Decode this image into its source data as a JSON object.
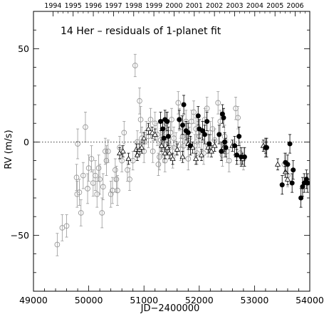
{
  "chart_data": {
    "type": "scatter",
    "title": "14 Her – residuals of 1-planet fit",
    "xlabel": "JD−2400000",
    "ylabel": "RV (m/s)",
    "xlim": [
      49000,
      54000
    ],
    "ylim": [
      -80,
      70
    ],
    "x_ticks": [
      49000,
      50000,
      51000,
      52000,
      53000,
      54000
    ],
    "x_tick_labels": [
      "49000",
      "50000",
      "51000",
      "52000",
      "53000",
      "54000"
    ],
    "y_ticks": [
      -50,
      0,
      50
    ],
    "y_tick_labels": [
      "−50",
      "0",
      "50"
    ],
    "top_axis_years": [
      "1994",
      "1995",
      "1996",
      "1997",
      "1998",
      "1999",
      "2000",
      "2001",
      "2002",
      "2003",
      "2004",
      "2005",
      "2006"
    ],
    "top_axis_year_jd": [
      49353,
      49718,
      50083,
      50449,
      50814,
      51179,
      51544,
      51910,
      52275,
      52640,
      53005,
      53371,
      53736
    ],
    "zero_line": true,
    "grid": false,
    "legend": "none",
    "series": [
      {
        "marker": "open-circle",
        "color": "#999999",
        "points": [
          [
            49430,
            -55,
            6
          ],
          [
            49520,
            -46,
            7
          ],
          [
            49600,
            -45,
            6
          ],
          [
            49780,
            -19,
            7
          ],
          [
            49790,
            -28,
            7
          ],
          [
            49800,
            -1,
            8
          ],
          [
            49830,
            -27,
            7
          ],
          [
            49860,
            -38,
            7
          ],
          [
            49900,
            -18,
            7
          ],
          [
            49940,
            8,
            8
          ],
          [
            49980,
            -25,
            8
          ],
          [
            50000,
            -14,
            7
          ],
          [
            50050,
            -9,
            7
          ],
          [
            50080,
            -22,
            7
          ],
          [
            50120,
            -18,
            8
          ],
          [
            50150,
            -28,
            7
          ],
          [
            50180,
            -14,
            7
          ],
          [
            50200,
            -20,
            8
          ],
          [
            50240,
            -38,
            8
          ],
          [
            50260,
            -24,
            7
          ],
          [
            50300,
            -5,
            7
          ],
          [
            50320,
            -10,
            8
          ],
          [
            50350,
            -5,
            6
          ],
          [
            50400,
            -28,
            7
          ],
          [
            50430,
            -26,
            7
          ],
          [
            50480,
            -15,
            6
          ],
          [
            50500,
            -20,
            7
          ],
          [
            50520,
            -26,
            8
          ],
          [
            50560,
            -3,
            6
          ],
          [
            50600,
            -10,
            6
          ],
          [
            50640,
            5,
            6
          ],
          [
            50700,
            -15,
            6
          ],
          [
            50740,
            -20,
            6
          ],
          [
            50800,
            -10,
            5
          ],
          [
            50840,
            41,
            6
          ],
          [
            50880,
            0,
            6
          ],
          [
            50920,
            22,
            7
          ],
          [
            50940,
            12,
            7
          ],
          [
            50960,
            2,
            6
          ],
          [
            51000,
            -5,
            6
          ],
          [
            51040,
            5,
            6
          ],
          [
            51080,
            3,
            6
          ],
          [
            51120,
            12,
            6
          ],
          [
            51160,
            -5,
            6
          ],
          [
            51200,
            10,
            6
          ],
          [
            51240,
            4,
            6
          ],
          [
            51260,
            -12,
            6
          ],
          [
            51280,
            -8,
            7
          ],
          [
            51300,
            1,
            6
          ],
          [
            51320,
            -2,
            6
          ],
          [
            51340,
            6,
            6
          ],
          [
            51360,
            -5,
            6
          ],
          [
            51380,
            -10,
            6
          ],
          [
            51400,
            10,
            6
          ],
          [
            51420,
            0,
            6
          ],
          [
            51460,
            -3,
            6
          ],
          [
            51480,
            5,
            6
          ],
          [
            51500,
            12,
            6
          ],
          [
            51520,
            -8,
            6
          ],
          [
            51540,
            2,
            6
          ],
          [
            51580,
            -1,
            6
          ],
          [
            51620,
            21,
            6
          ],
          [
            51640,
            12,
            6
          ],
          [
            51660,
            -4,
            6
          ],
          [
            51680,
            8,
            6
          ],
          [
            51700,
            3,
            6
          ],
          [
            51720,
            -2,
            6
          ],
          [
            51760,
            11,
            6
          ],
          [
            51780,
            5,
            6
          ],
          [
            51800,
            -9,
            6
          ],
          [
            51820,
            2,
            6
          ],
          [
            51860,
            11,
            6
          ],
          [
            51900,
            16,
            6
          ],
          [
            51920,
            -2,
            6
          ],
          [
            51940,
            7,
            6
          ],
          [
            51960,
            -6,
            6
          ],
          [
            51980,
            5,
            6
          ],
          [
            52000,
            3,
            6
          ],
          [
            52040,
            1,
            6
          ],
          [
            52080,
            -6,
            6
          ],
          [
            52100,
            12,
            6
          ],
          [
            52140,
            18,
            6
          ],
          [
            52160,
            -2,
            6
          ],
          [
            52200,
            5,
            6
          ],
          [
            52240,
            7,
            6
          ],
          [
            52280,
            1,
            6
          ],
          [
            52340,
            21,
            6
          ],
          [
            52380,
            11,
            6
          ],
          [
            52420,
            -7,
            6
          ],
          [
            52460,
            3,
            6
          ],
          [
            52500,
            -5,
            6
          ],
          [
            52540,
            -10,
            6
          ],
          [
            52660,
            18,
            6
          ],
          [
            52700,
            13,
            6
          ],
          [
            52740,
            -6,
            6
          ],
          [
            52800,
            -9,
            6
          ],
          [
            53540,
            -12,
            6
          ],
          [
            53600,
            -18,
            6
          ]
        ]
      },
      {
        "marker": "open-triangle",
        "color": "#000000",
        "points": [
          [
            50560,
            -6,
            3
          ],
          [
            50620,
            -5,
            3
          ],
          [
            50720,
            -9,
            3
          ],
          [
            50860,
            -4,
            3
          ],
          [
            50880,
            -7,
            3
          ],
          [
            50920,
            -4,
            3
          ],
          [
            50960,
            -3,
            3
          ],
          [
            51000,
            2,
            3
          ],
          [
            51080,
            7,
            3
          ],
          [
            51150,
            5,
            3
          ],
          [
            51200,
            4,
            3
          ],
          [
            51320,
            -2,
            3
          ],
          [
            51380,
            -6,
            3
          ],
          [
            51420,
            -3,
            3
          ],
          [
            51460,
            -6,
            3
          ],
          [
            51520,
            -9,
            3
          ],
          [
            51600,
            -4,
            3
          ],
          [
            51700,
            -8,
            3
          ],
          [
            51800,
            -1,
            3
          ],
          [
            51880,
            -3,
            3
          ],
          [
            51940,
            -9,
            3
          ],
          [
            52040,
            -7,
            3
          ],
          [
            52160,
            -3,
            3
          ],
          [
            52220,
            -5,
            3
          ],
          [
            52280,
            -2,
            3
          ],
          [
            52440,
            -3,
            3
          ],
          [
            52600,
            -2,
            3
          ],
          [
            52680,
            -7,
            3
          ],
          [
            52780,
            -9,
            3
          ],
          [
            53160,
            -2,
            3
          ],
          [
            53200,
            -3,
            3
          ],
          [
            53420,
            -12,
            3
          ],
          [
            53560,
            -16,
            3
          ],
          [
            53600,
            -20,
            3
          ]
        ]
      },
      {
        "marker": "filled-circle",
        "color": "#000000",
        "points": [
          [
            51300,
            11,
            5
          ],
          [
            51340,
            7,
            5
          ],
          [
            51360,
            2,
            5
          ],
          [
            51380,
            12,
            5
          ],
          [
            51420,
            11,
            5
          ],
          [
            51440,
            3,
            5
          ],
          [
            51640,
            12,
            5
          ],
          [
            51700,
            9,
            5
          ],
          [
            51720,
            20,
            5
          ],
          [
            51760,
            6,
            5
          ],
          [
            51800,
            5,
            5
          ],
          [
            51840,
            -2,
            5
          ],
          [
            51980,
            14,
            5
          ],
          [
            52000,
            7,
            5
          ],
          [
            52060,
            6,
            5
          ],
          [
            52100,
            4,
            5
          ],
          [
            52140,
            11,
            5
          ],
          [
            52180,
            -1,
            5
          ],
          [
            52360,
            4,
            5
          ],
          [
            52400,
            -5,
            5
          ],
          [
            52420,
            15,
            5
          ],
          [
            52440,
            13,
            5
          ],
          [
            52460,
            0,
            5
          ],
          [
            52480,
            -3,
            5
          ],
          [
            52640,
            -2,
            5
          ],
          [
            52680,
            -7,
            5
          ],
          [
            52720,
            3,
            5
          ],
          [
            52760,
            -8,
            5
          ],
          [
            52820,
            -8,
            5
          ],
          [
            53200,
            -3,
            5
          ],
          [
            53220,
            -3,
            5
          ],
          [
            53500,
            -23,
            5
          ],
          [
            53560,
            -11,
            5
          ],
          [
            53600,
            -12,
            5
          ],
          [
            53640,
            -1,
            5
          ],
          [
            53680,
            -22,
            5
          ],
          [
            53700,
            -15,
            5
          ],
          [
            53840,
            -30,
            5
          ],
          [
            53870,
            -24,
            5
          ],
          [
            53900,
            -22,
            5
          ],
          [
            53940,
            -20,
            5
          ],
          [
            53960,
            -22,
            5
          ]
        ]
      }
    ]
  }
}
